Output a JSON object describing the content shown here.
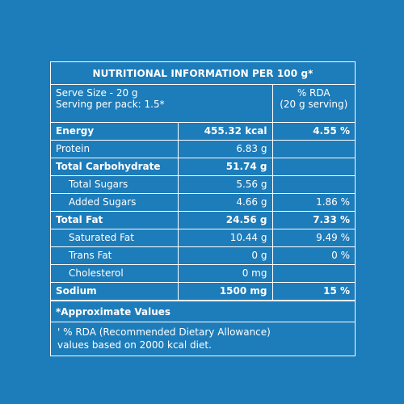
{
  "title": "NUTRITIONAL INFORMATION PER 100 g*",
  "serving": {
    "size": "Serve Size - 20 g",
    "per_pack": "Serving per pack: 1.5*",
    "rda_label": "% RDA",
    "rda_basis": "(20 g serving)"
  },
  "rows": [
    {
      "name": "Energy",
      "value": "455.32 kcal",
      "rda": "4.55 %"
    },
    {
      "name": "Protein",
      "value": "6.83 g",
      "rda": ""
    },
    {
      "name": "Total Carbohydrate",
      "value": "51.74 g",
      "rda": ""
    },
    {
      "name": "Total Sugars",
      "value": "5.56 g",
      "rda": ""
    },
    {
      "name": "Added Sugars",
      "value": "4.66 g",
      "rda": "1.86 %"
    },
    {
      "name": "Total Fat",
      "value": "24.56 g",
      "rda": "7.33 %"
    },
    {
      "name": "Saturated Fat",
      "value": "10.44 g",
      "rda": "9.49 %"
    },
    {
      "name": "Trans Fat",
      "value": "0 g",
      "rda": "0 %"
    },
    {
      "name": "Cholesterol",
      "value": "0 mg",
      "rda": ""
    },
    {
      "name": "Sodium",
      "value": "1500 mg",
      "rda": "15 %"
    }
  ],
  "approx_note": "*Approximate Values",
  "rda_note_line1": "' % RDA (Recommended Dietary Allowance)",
  "rda_note_line2": "values based on 2000 kcal diet.",
  "colors": {
    "background": "#1d7cba",
    "text": "#ffffff"
  }
}
